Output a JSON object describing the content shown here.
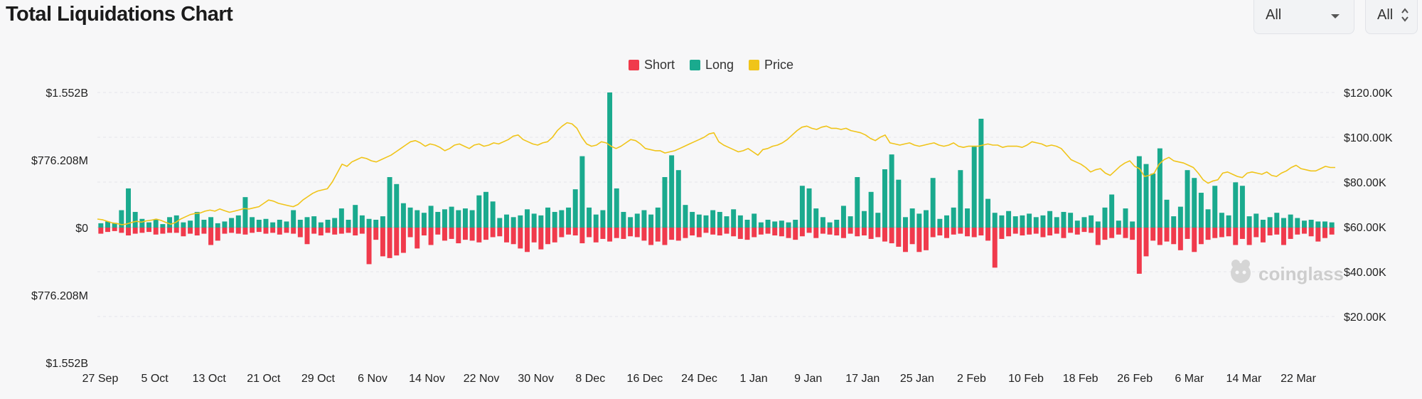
{
  "header": {
    "title": "Total Liquidations Chart"
  },
  "filters": {
    "range_value": "All",
    "coin_value": "All"
  },
  "legend": [
    {
      "name": "Short",
      "color": "#f03a4c"
    },
    {
      "name": "Long",
      "color": "#1aaa8e"
    },
    {
      "name": "Price",
      "color": "#f0c419"
    }
  ],
  "watermark": "coinglass",
  "chart_data": {
    "type": "bar",
    "title": "Total Liquidations Chart",
    "left_axis_ticks": [
      "$1.552B",
      "$776.208M",
      "$0",
      "$776.208M",
      "$1.552B"
    ],
    "right_axis_ticks": [
      "$120.00K",
      "$100.00K",
      "$80.00K",
      "$60.00K",
      "$40.00K",
      "$20.00K"
    ],
    "left_axis_range": [
      -1552000000,
      1552000000
    ],
    "right_axis_range": [
      0,
      120000
    ],
    "x_tick_labels": [
      "27 Sep",
      "5 Oct",
      "13 Oct",
      "21 Oct",
      "29 Oct",
      "6 Nov",
      "14 Nov",
      "22 Nov",
      "30 Nov",
      "8 Dec",
      "16 Dec",
      "24 Dec",
      "1 Jan",
      "9 Jan",
      "17 Jan",
      "25 Jan",
      "2 Feb",
      "10 Feb",
      "18 Feb",
      "26 Feb",
      "6 Mar",
      "14 Mar",
      "22 Mar"
    ],
    "series": [
      {
        "name": "Long",
        "color": "#1aaa8e",
        "unit": "USD millions",
        "values": [
          50,
          70,
          55,
          200,
          450,
          180,
          100,
          60,
          90,
          40,
          120,
          140,
          60,
          80,
          180,
          90,
          120,
          50,
          70,
          110,
          140,
          350,
          120,
          90,
          100,
          60,
          90,
          70,
          200,
          90,
          120,
          130,
          60,
          90,
          110,
          220,
          90,
          260,
          140,
          100,
          90,
          130,
          580,
          500,
          280,
          230,
          200,
          170,
          250,
          180,
          210,
          240,
          200,
          220,
          200,
          370,
          410,
          300,
          110,
          150,
          120,
          140,
          210,
          160,
          140,
          230,
          180,
          200,
          230,
          440,
          820,
          230,
          150,
          200,
          1552,
          450,
          180,
          120,
          160,
          200,
          150,
          230,
          580,
          830,
          660,
          260,
          180,
          150,
          140,
          200,
          180,
          130,
          210,
          140,
          90,
          160,
          60,
          90,
          70,
          80,
          60,
          90,
          480,
          450,
          220,
          120,
          60,
          90,
          250,
          130,
          580,
          190,
          410,
          170,
          670,
          840,
          550,
          120,
          220,
          160,
          200,
          570,
          100,
          140,
          230,
          660,
          220,
          930,
          1250,
          330,
          170,
          140,
          190,
          130,
          140,
          160,
          120,
          140,
          190,
          120,
          180,
          170,
          80,
          120,
          140,
          70,
          230,
          380,
          80,
          220,
          70,
          820,
          730,
          620,
          910,
          320,
          130,
          240,
          660,
          570,
          400,
          210,
          480,
          170,
          140,
          520,
          480,
          130,
          160,
          90,
          120,
          170,
          110,
          150,
          110,
          80,
          90,
          70,
          70,
          60
        ]
      },
      {
        "name": "Short",
        "color": "#f03a4c",
        "unit": "USD millions",
        "values": [
          70,
          50,
          40,
          60,
          90,
          70,
          60,
          50,
          80,
          70,
          60,
          60,
          100,
          70,
          90,
          70,
          200,
          150,
          70,
          60,
          70,
          80,
          60,
          50,
          70,
          60,
          80,
          60,
          70,
          110,
          190,
          70,
          90,
          60,
          80,
          70,
          60,
          90,
          70,
          420,
          140,
          330,
          350,
          320,
          290,
          110,
          240,
          90,
          200,
          80,
          150,
          130,
          180,
          140,
          150,
          170,
          140,
          110,
          100,
          170,
          190,
          240,
          280,
          170,
          250,
          190,
          170,
          110,
          80,
          90,
          180,
          110,
          170,
          130,
          160,
          120,
          130,
          100,
          110,
          150,
          200,
          160,
          200,
          140,
          150,
          120,
          90,
          110,
          60,
          80,
          90,
          70,
          100,
          130,
          140,
          110,
          80,
          70,
          90,
          100,
          120,
          140,
          100,
          60,
          120,
          70,
          80,
          90,
          120,
          70,
          100,
          90,
          130,
          110,
          160,
          180,
          220,
          280,
          190,
          280,
          260,
          110,
          90,
          120,
          80,
          70,
          100,
          110,
          90,
          150,
          460,
          130,
          100,
          70,
          90,
          80,
          70,
          110,
          90,
          70,
          120,
          60,
          80,
          50,
          60,
          200,
          140,
          120,
          80,
          120,
          140,
          530,
          330,
          150,
          200,
          160,
          190,
          260,
          130,
          280,
          190,
          140,
          120,
          110,
          100,
          200,
          130,
          200,
          110,
          170,
          90,
          80,
          200,
          130,
          80,
          70,
          100,
          160,
          120,
          80,
          90,
          150,
          70,
          60,
          50
        ]
      },
      {
        "name": "Price",
        "color": "#f0c419",
        "unit": "USD thousands",
        "values": [
          63.5,
          63.2,
          62.5,
          61.8,
          61.5,
          61.0,
          61.3,
          62.0,
          62.5,
          62.1,
          62.7,
          63.0,
          63.5,
          62.9,
          62.0,
          61.2,
          62.0,
          63.5,
          64.5,
          65.5,
          66.0,
          66.2,
          67.0,
          67.5,
          67.0,
          68.0,
          67.2,
          66.5,
          67.0,
          67.6,
          68.2,
          68.0,
          68.5,
          69.0,
          70.5,
          72.0,
          71.5,
          70.5,
          70.0,
          69.5,
          69.0,
          70.0,
          72.0,
          73.5,
          75.0,
          76.0,
          76.5,
          77.0,
          80.0,
          84.0,
          88.0,
          87.0,
          89.0,
          90.0,
          91.0,
          90.5,
          89.5,
          89.0,
          90.0,
          91.0,
          92.0,
          93.5,
          95.0,
          96.5,
          98.0,
          98.5,
          97.5,
          96.0,
          97.0,
          96.5,
          95.5,
          94.0,
          95.0,
          96.5,
          97.0,
          96.0,
          95.0,
          96.5,
          97.0,
          96.0,
          96.5,
          97.5,
          97.0,
          98.0,
          99.0,
          100.5,
          101.0,
          99.0,
          98.0,
          97.0,
          96.5,
          97.5,
          98.0,
          100.0,
          103.0,
          105.0,
          106.5,
          106.0,
          104.0,
          100.0,
          97.0,
          96.0,
          96.5,
          98.0,
          97.5,
          96.0,
          95.0,
          96.0,
          97.5,
          99.0,
          98.5,
          97.0,
          95.0,
          94.5,
          94.0,
          94.0,
          93.0,
          93.5,
          94.0,
          95.0,
          96.0,
          97.0,
          98.0,
          99.0,
          100.0,
          101.5,
          102.0,
          98.0,
          96.5,
          95.5,
          94.5,
          93.5,
          94.0,
          95.0,
          93.5,
          92.0,
          94.5,
          95.0,
          96.0,
          96.5,
          97.5,
          99.0,
          101.0,
          103.0,
          104.5,
          105.0,
          104.0,
          103.5,
          104.5,
          105.0,
          104.0,
          104.0,
          103.5,
          104.0,
          103.0,
          102.5,
          102.0,
          101.0,
          99.5,
          98.5,
          100.0,
          101.0,
          97.5,
          97.0,
          96.5,
          97.0,
          97.5,
          96.5,
          96.0,
          96.5,
          97.0,
          97.5,
          96.5,
          96.0,
          96.5,
          97.5,
          96.0,
          95.5,
          96.0,
          96.0,
          96.0,
          96.5,
          97.0,
          96.5,
          96.5,
          95.5,
          96.0,
          96.0,
          96.0,
          95.5,
          96.5,
          98.0,
          97.5,
          97.0,
          96.0,
          96.5,
          96.0,
          95.0,
          92.5,
          90.0,
          89.0,
          88.0,
          86.5,
          84.5,
          85.5,
          86.0,
          84.0,
          83.0,
          85.0,
          87.0,
          88.5,
          89.5,
          87.0,
          86.0,
          82.5,
          83.0,
          84.0,
          88.0,
          90.0,
          91.0,
          89.5,
          89.0,
          88.5,
          87.5,
          86.5,
          84.0,
          81.0,
          79.5,
          80.5,
          81.0,
          84.0,
          84.5,
          83.5,
          82.5,
          82.0,
          84.0,
          84.5,
          84.0,
          83.5,
          84.5,
          83.0,
          82.5,
          84.0,
          85.0,
          86.5,
          87.5,
          86.0,
          85.5,
          85.0,
          85.0,
          86.0,
          87.0,
          86.5,
          86.5
        ]
      }
    ],
    "xlabel": "",
    "ylabel": ""
  }
}
